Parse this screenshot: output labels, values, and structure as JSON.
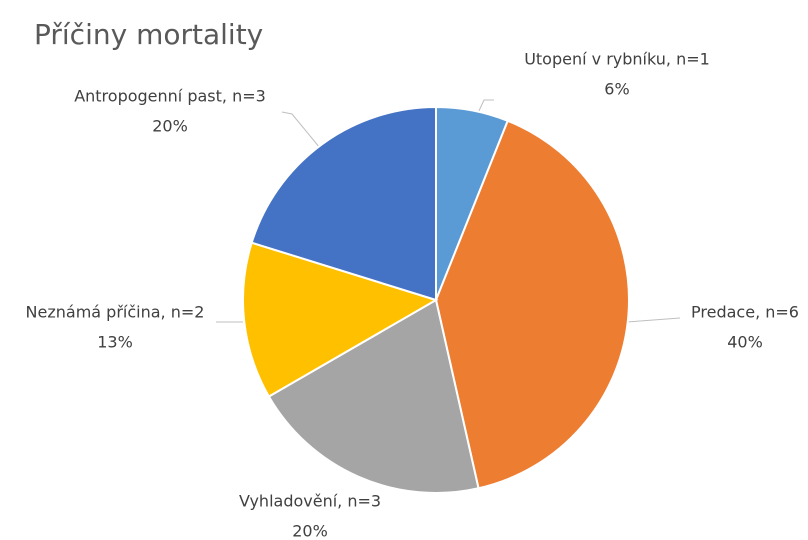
{
  "chart_data": {
    "type": "pie",
    "title": "Příčiny mortality",
    "categories": [
      "Utopení v rybníku, n=1",
      "Predace, n=6",
      "Vyhladovění, n=3",
      "Neznámá příčina, n=2",
      "Antropogenní past, n=3"
    ],
    "values": [
      6,
      40,
      20,
      13,
      20
    ],
    "value_labels": [
      "6%",
      "40%",
      "20%",
      "13%",
      "20%"
    ],
    "colors": [
      "#5b9bd5",
      "#ed7d31",
      "#a5a5a5",
      "#ffc000",
      "#4472c4"
    ]
  }
}
